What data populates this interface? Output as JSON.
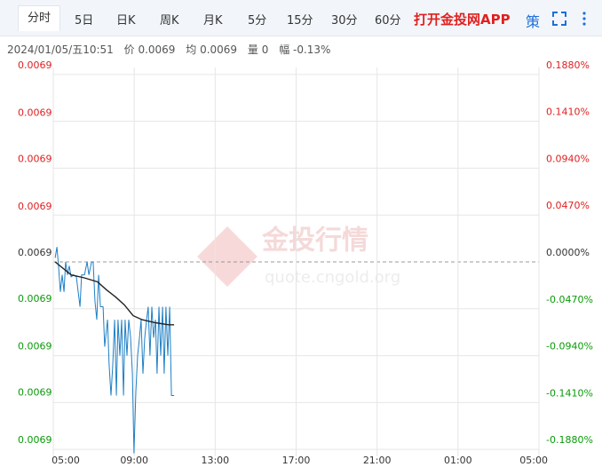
{
  "toolbar": {
    "tabs": [
      "分时",
      "5日",
      "日K",
      "周K",
      "月K",
      "5分",
      "15分",
      "30分",
      "60分"
    ],
    "app_link": "打开金投网APP",
    "strategy": "策"
  },
  "info": {
    "datetime": "2024/01/05/五10:51",
    "price": "价 0.0069",
    "average": "均 0.0069",
    "volume": "量 0",
    "change": "幅 -0.13%"
  },
  "watermark": {
    "name": "金投行情",
    "url": "quote.cngold.org"
  },
  "chart_data": {
    "type": "line",
    "xlim": [
      0,
      24
    ],
    "xticks": [
      {
        "value": 0,
        "label": "05:00"
      },
      {
        "value": 4,
        "label": "09:00"
      },
      {
        "value": 8,
        "label": "13:00"
      },
      {
        "value": 12,
        "label": "17:00"
      },
      {
        "value": 16,
        "label": "21:00"
      },
      {
        "value": 20,
        "label": "01:00"
      },
      {
        "value": 24,
        "label": "05:00"
      }
    ],
    "ylim": [
      -0.195,
      0.195
    ],
    "yticks": [
      {
        "value": 0.188,
        "label": "0.1880%"
      },
      {
        "value": 0.141,
        "label": "0.1410%"
      },
      {
        "value": 0.094,
        "label": "0.0940%"
      },
      {
        "value": 0.047,
        "label": "0.0470%"
      },
      {
        "value": 0,
        "label": "0.0000%"
      },
      {
        "value": -0.047,
        "label": "-0.0470%"
      },
      {
        "value": -0.094,
        "label": "-0.0940%"
      },
      {
        "value": -0.141,
        "label": "-0.1410%"
      },
      {
        "value": -0.188,
        "label": "-0.1880%"
      }
    ],
    "y2lim": [
      0.0068865,
      0.0069135
    ],
    "y2ticks": [
      {
        "value": 0.006913,
        "label": "0.0069"
      },
      {
        "value": 0.0069097,
        "label": "0.0069"
      },
      {
        "value": 0.0069065,
        "label": "0.0069"
      },
      {
        "value": 0.0069032,
        "label": "0.0069"
      },
      {
        "value": 0.0069,
        "label": "0.0069"
      },
      {
        "value": 0.0068968,
        "label": "0.0069"
      },
      {
        "value": 0.0068935,
        "label": "0.0069"
      },
      {
        "value": 0.0068903,
        "label": "0.0069"
      },
      {
        "value": 0.006887,
        "label": "0.0069"
      }
    ],
    "baseline": 0,
    "up_color": "#e02020",
    "down_color": "#0a9a0a",
    "flat_color": "#333333",
    "grid": true,
    "series": [
      {
        "color": "#1f7fc4",
        "x": [
          0.09,
          0.18,
          0.26,
          0.35,
          0.44,
          0.53,
          0.61,
          0.7,
          0.79,
          0.88,
          1.01,
          1.14,
          1.32,
          1.4,
          1.54,
          1.67,
          1.76,
          1.89,
          1.97,
          2.06,
          2.15,
          2.24,
          2.33,
          2.46,
          2.54,
          2.68,
          2.76,
          2.85,
          2.94,
          3.03,
          3.12,
          3.2,
          3.29,
          3.38,
          3.47,
          3.55,
          3.64,
          3.73,
          3.82,
          3.91,
          3.99,
          4.08,
          4.17,
          4.26,
          4.34,
          4.43,
          4.52,
          4.61,
          4.69,
          4.78,
          4.87,
          4.96,
          5.05,
          5.13,
          5.22,
          5.31,
          5.4,
          5.48,
          5.57,
          5.66,
          5.75,
          5.84,
          5.97
        ],
        "values": [
          0.004,
          0.015,
          -0.004,
          -0.03,
          -0.013,
          -0.03,
          0,
          -0.013,
          -0.004,
          -0.015,
          -0.013,
          -0.015,
          -0.045,
          -0.013,
          -0.013,
          0,
          -0.013,
          0,
          0,
          -0.04,
          -0.058,
          -0.013,
          -0.045,
          -0.045,
          -0.085,
          -0.058,
          -0.103,
          -0.134,
          -0.103,
          -0.058,
          -0.134,
          -0.058,
          -0.094,
          -0.058,
          -0.134,
          -0.058,
          -0.094,
          -0.058,
          -0.076,
          -0.112,
          -0.192,
          -0.13,
          -0.094,
          -0.076,
          -0.058,
          -0.112,
          -0.076,
          -0.058,
          -0.045,
          -0.094,
          -0.045,
          -0.076,
          -0.058,
          -0.112,
          -0.045,
          -0.094,
          -0.045,
          -0.112,
          -0.045,
          -0.094,
          -0.045,
          -0.134,
          -0.134
        ]
      },
      {
        "color": "#222222",
        "x": [
          0.09,
          0.88,
          1.54,
          2.19,
          2.63,
          3.07,
          3.51,
          3.95,
          4.39,
          5.05,
          5.7,
          5.97
        ],
        "values": [
          0,
          -0.013,
          -0.016,
          -0.02,
          -0.028,
          -0.035,
          -0.043,
          -0.054,
          -0.058,
          -0.061,
          -0.063,
          -0.063
        ]
      }
    ]
  }
}
